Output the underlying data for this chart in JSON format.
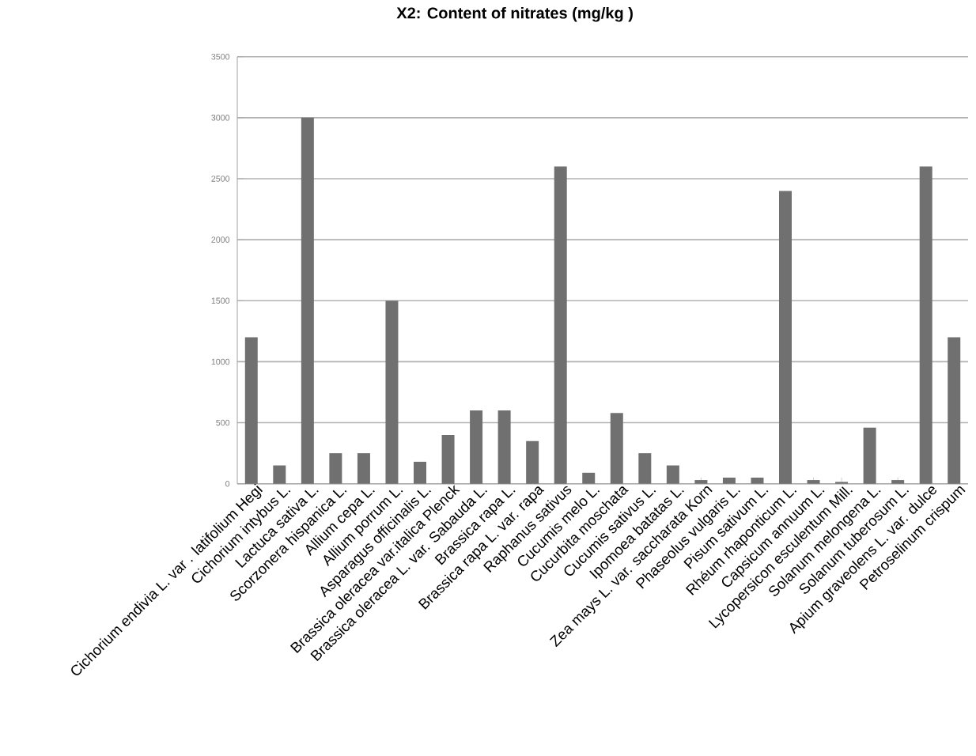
{
  "chart_data": {
    "type": "bar",
    "title": "X2: Content of nitrates (mg/kg )",
    "categories": [
      "Cichorium endivia L. var . latifolium Hegi",
      "Cichorium intybus L.",
      "Lactuca sativa L.",
      "Scorzonera hispanica L.",
      "Allium cepa L.",
      "Allium porrum L.",
      "Asparagus officinalis L.",
      "Brassica oleracea var.italica Plenck",
      "Brassica oleracea L. var. Sabauda L.",
      "Brassica rapa L.",
      "Brassica rapa L. var. rapa",
      "Raphanus sativus",
      "Cucumis melo L.",
      "Cucurbita moschata",
      "Cucumis sativus L.",
      "Ipomoea batatas L.",
      "Zea mays L. var. saccharata Korn",
      "Phaseolus vulgaris L.",
      "Pisum sativum L.",
      "Rhéum rhaponticum L.",
      "Capsicum annuum L.",
      "Lycopersicon esculentum Mill.",
      "Solanum melongena L.",
      "Solanum tuberosum L.",
      "Apium graveolens L. var. dulce",
      "Petroselinum crispum"
    ],
    "values": [
      1200,
      150,
      3000,
      250,
      250,
      1500,
      180,
      400,
      600,
      600,
      350,
      2600,
      90,
      580,
      250,
      150,
      30,
      50,
      50,
      2400,
      30,
      15,
      460,
      30,
      2600,
      1200
    ],
    "color": "#707070",
    "ylim": [
      0,
      3500
    ],
    "yticks": [
      0,
      500,
      1000,
      1500,
      2000,
      2500,
      3000,
      3500
    ],
    "grid": "y"
  }
}
